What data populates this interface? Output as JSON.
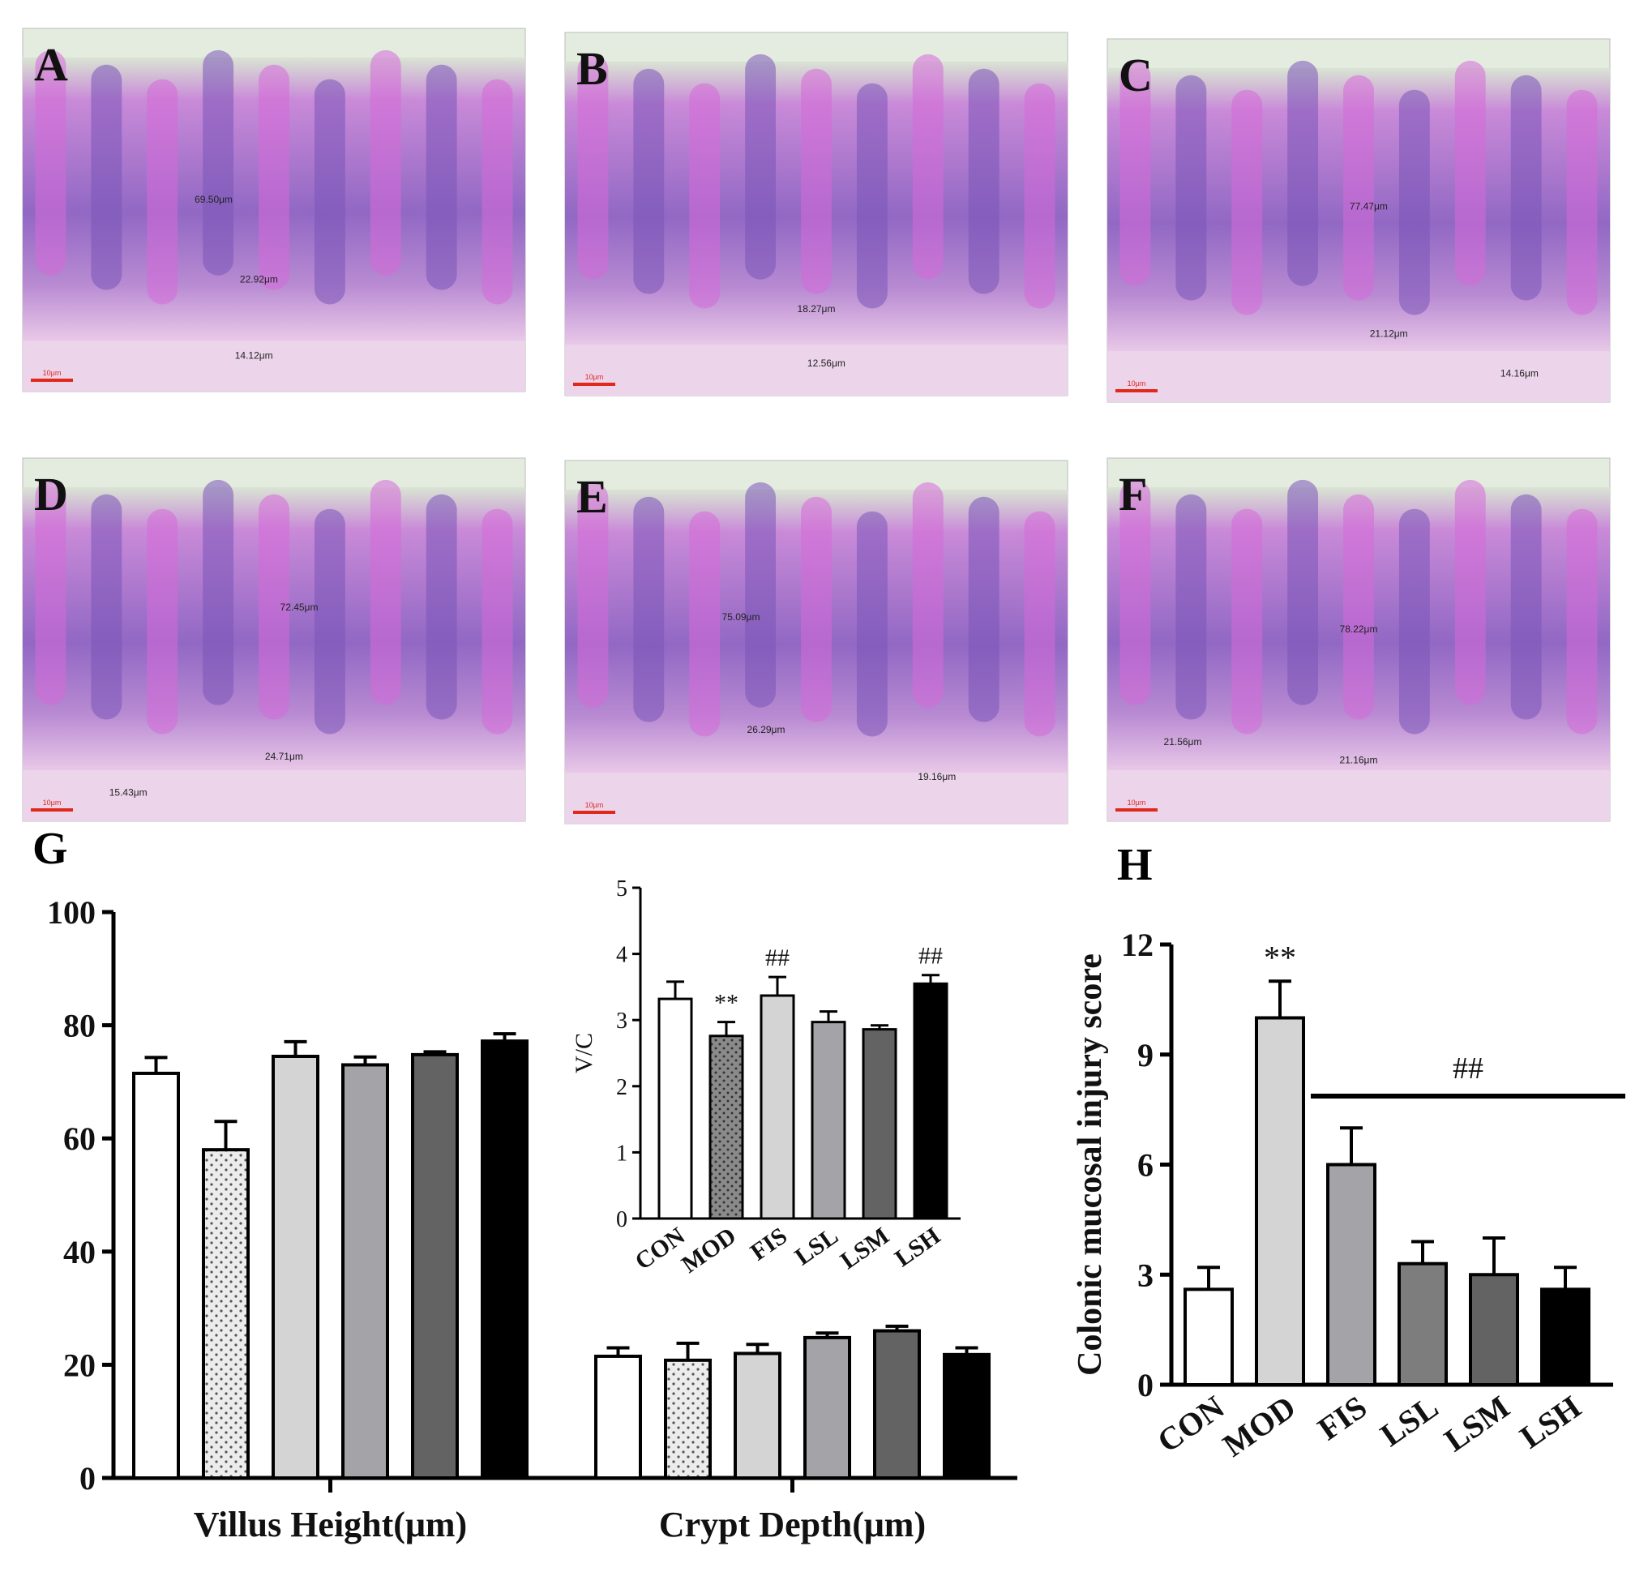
{
  "colors": {
    "tissue_pink": "#d56ad8",
    "tissue_violet": "#7a56b8",
    "background_pale": "#e4ecdf",
    "scale_bar": "#e0281b",
    "bar_con": "#ffffff",
    "bar_mod": "#e6e6e6",
    "bar_fis": "#d4d4d4",
    "bar_lsl": "#a4a4a8",
    "bar_lsm": "#636363",
    "bar_lsh": "#000000"
  },
  "micrographs": [
    {
      "letter": "A",
      "scale_bar_label": "10μm",
      "measurements": [
        "69.50μm",
        "22.92μm",
        "14.12μm"
      ]
    },
    {
      "letter": "B",
      "scale_bar_label": "10μm",
      "measurements": [
        "18.27μm",
        "12.56μm"
      ]
    },
    {
      "letter": "C",
      "scale_bar_label": "10μm",
      "measurements": [
        "77.47μm",
        "21.12μm",
        "14.16μm"
      ]
    },
    {
      "letter": "D",
      "scale_bar_label": "10μm",
      "measurements": [
        "72.45μm",
        "24.71μm",
        "15.43μm"
      ]
    },
    {
      "letter": "E",
      "scale_bar_label": "10μm",
      "measurements": [
        "75.09μm",
        "26.29μm",
        "19.16μm"
      ]
    },
    {
      "letter": "F",
      "scale_bar_label": "10μm",
      "measurements": [
        "78.22μm",
        "21.56μm",
        "21.16μm"
      ]
    }
  ],
  "chart_data": [
    {
      "panel": "G",
      "type": "bar",
      "groups": [
        "Villus Height(μm)",
        "Crypt Depth(μm)"
      ],
      "categories": [
        "CON",
        "MOD",
        "FIS",
        "LSL",
        "LSM",
        "LSH"
      ],
      "series": [
        {
          "group": "Villus Height(μm)",
          "values": [
            71.5,
            58.0,
            74.5,
            73.0,
            74.8,
            77.2
          ],
          "errors": [
            2.8,
            5.0,
            2.6,
            1.4,
            0.5,
            1.3
          ]
        },
        {
          "group": "Crypt Depth(μm)",
          "values": [
            21.5,
            20.8,
            22.0,
            24.8,
            26.0,
            21.8
          ],
          "errors": [
            1.5,
            3.0,
            1.6,
            0.8,
            0.8,
            1.2
          ]
        }
      ],
      "ylim": [
        0,
        100
      ],
      "yticks": [
        0,
        20,
        40,
        60,
        80,
        100
      ],
      "grid": false
    },
    {
      "panel": "G-inset",
      "type": "bar",
      "categories": [
        "CON",
        "MOD",
        "FIS",
        "LSL",
        "LSM",
        "LSH"
      ],
      "values": [
        3.32,
        2.76,
        3.37,
        2.97,
        2.86,
        3.55
      ],
      "errors": [
        0.26,
        0.21,
        0.28,
        0.16,
        0.06,
        0.13
      ],
      "ylabel": "V/C",
      "ylim": [
        0,
        5
      ],
      "yticks": [
        0,
        1,
        2,
        3,
        4,
        5
      ],
      "annotations": {
        "MOD": "**",
        "FIS": "##",
        "LSH": "##"
      },
      "grid": false
    },
    {
      "panel": "H",
      "type": "bar",
      "categories": [
        "CON",
        "MOD",
        "FIS",
        "LSL",
        "LSM",
        "LSH"
      ],
      "values": [
        2.6,
        10.0,
        6.0,
        3.3,
        3.0,
        2.6
      ],
      "errors": [
        0.6,
        1.0,
        1.0,
        0.6,
        1.0,
        0.6
      ],
      "ylabel": "Colonic mucosal injury score",
      "ylim": [
        0,
        12
      ],
      "yticks": [
        0,
        3,
        6,
        9,
        12
      ],
      "annotations": {
        "MOD": "**"
      },
      "bracket_label": "##",
      "bracket_span": [
        "FIS",
        "LSH"
      ],
      "grid": false
    }
  ],
  "panel_letters": {
    "G": "G",
    "H": "H"
  }
}
